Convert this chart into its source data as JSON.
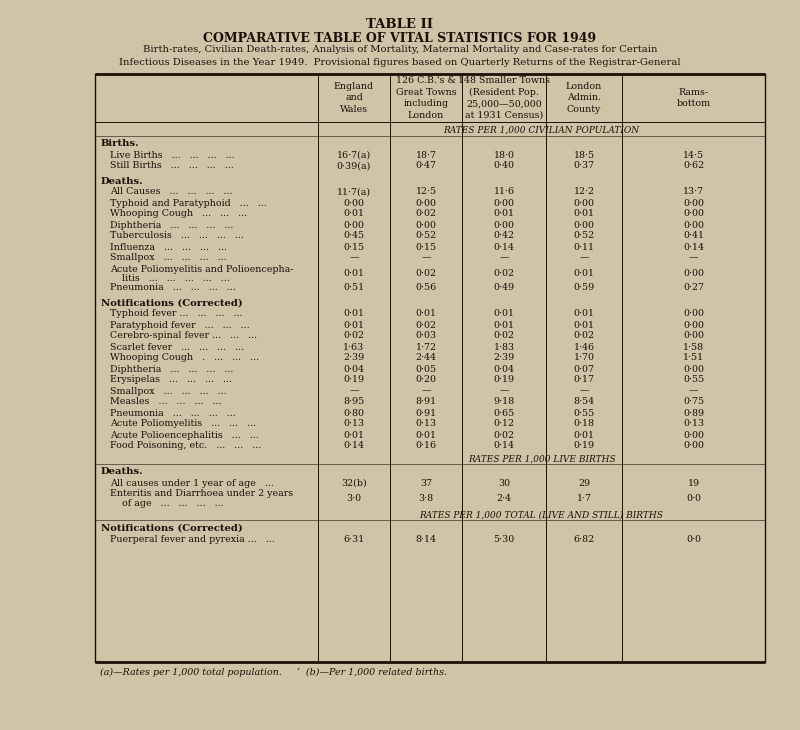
{
  "title1": "TABLE II",
  "title2": "COMPARATIVE TABLE OF VITAL STATISTICS FOR 1949",
  "subtitle": "Birth-rates, Civilian Death-rates, Analysis of Mortality, Maternal Mortality and Case-rates for Certain\nInfectious Diseases in the Year 1949.  Provisional figures based on Quarterly Returns of the Registrar-General",
  "col_headers": [
    "England\nand\nWales",
    "126 C.B.'s &\nGreat Towns\nincluding\nLondon",
    "148 Smaller Towns\n(Resident Pop.\n25,000—50,000\nat 1931 Census)",
    "London\nAdmin.\nCounty",
    "Rams-\nbottom"
  ],
  "rows": [
    {
      "label": "Births.",
      "bold": true,
      "indent": 0,
      "values": [
        "",
        "",
        "",
        "",
        ""
      ],
      "type": "section_bold"
    },
    {
      "label": "Live Births   ...   ...   ...   ...",
      "bold": false,
      "indent": 1,
      "values": [
        "16·7(a)",
        "18·7",
        "18·0",
        "18·5",
        "14·5"
      ],
      "type": "data"
    },
    {
      "label": "Still Births   ...   ...   ...   ...",
      "bold": false,
      "indent": 1,
      "values": [
        "0·39(a)",
        "0·47",
        "0·40",
        "0·37",
        "0·62"
      ],
      "type": "data"
    },
    {
      "label": "",
      "bold": false,
      "indent": 0,
      "values": [
        "",
        "",
        "",
        "",
        ""
      ],
      "type": "spacer"
    },
    {
      "label": "Deaths.",
      "bold": true,
      "indent": 0,
      "values": [
        "",
        "",
        "",
        "",
        ""
      ],
      "type": "section_bold"
    },
    {
      "label": "All Causes   ...   ...   ...   ...",
      "bold": false,
      "indent": 1,
      "values": [
        "11·7(a)",
        "12·5",
        "11·6",
        "12·2",
        "13·7"
      ],
      "type": "data"
    },
    {
      "label": "Typhoid and Paratyphoid   ...   ...",
      "bold": false,
      "indent": 1,
      "values": [
        "0·00",
        "0·00",
        "0·00",
        "0·00",
        "0·00"
      ],
      "type": "data"
    },
    {
      "label": "Whooping Cough   ...   ...   ...",
      "bold": false,
      "indent": 1,
      "values": [
        "0·01",
        "0·02",
        "0·01",
        "0·01",
        "0·00"
      ],
      "type": "data"
    },
    {
      "label": "Diphtheria   ...   ...   ...   ...",
      "bold": false,
      "indent": 1,
      "values": [
        "0·00",
        "0·00",
        "0·00",
        "0·00",
        "0·00"
      ],
      "type": "data"
    },
    {
      "label": "Tuberculosis   ...   ...   ...   ...",
      "bold": false,
      "indent": 1,
      "values": [
        "0·45",
        "0·52",
        "0·42",
        "0·52",
        "0·41"
      ],
      "type": "data"
    },
    {
      "label": "Influenza   ...   ...   ...   ...",
      "bold": false,
      "indent": 1,
      "values": [
        "0·15",
        "0·15",
        "0·14",
        "0·11",
        "0·14"
      ],
      "type": "data"
    },
    {
      "label": "Smallpox   ...   ...   ...   ...",
      "bold": false,
      "indent": 1,
      "values": [
        "—",
        "—",
        "—",
        "—",
        "—"
      ],
      "type": "data"
    },
    {
      "label": "Acute Poliomyelitis and Polioencepha-",
      "label2": "    litis   ...   ...   ...   ...   ...",
      "bold": false,
      "indent": 1,
      "values": [
        "0·01",
        "0·02",
        "0·02",
        "0·01",
        "0·00"
      ],
      "type": "data2"
    },
    {
      "label": "Pneumonia   ...   ...   ...   ...",
      "bold": false,
      "indent": 1,
      "values": [
        "0·51",
        "0·56",
        "0·49",
        "0·59",
        "0·27"
      ],
      "type": "data"
    },
    {
      "label": "",
      "bold": false,
      "indent": 0,
      "values": [
        "",
        "",
        "",
        "",
        ""
      ],
      "type": "spacer"
    },
    {
      "label": "Notifications (Corrected)",
      "bold": true,
      "indent": 0,
      "values": [
        "",
        "",
        "",
        "",
        ""
      ],
      "type": "section_bold"
    },
    {
      "label": "Typhoid fever ...   ...   ...   ...",
      "bold": false,
      "indent": 1,
      "values": [
        "0·01",
        "0·01",
        "0·01",
        "0·01",
        "0·00"
      ],
      "type": "data"
    },
    {
      "label": "Paratyphoid fever   ...   ...   ...",
      "bold": false,
      "indent": 1,
      "values": [
        "0·01",
        "0·02",
        "0·01",
        "0·01",
        "0·00"
      ],
      "type": "data"
    },
    {
      "label": "Cerebro-spinal fever ...   ...   ...",
      "bold": false,
      "indent": 1,
      "values": [
        "0·02",
        "0·03",
        "0·02",
        "0·02",
        "0·00"
      ],
      "type": "data"
    },
    {
      "label": "Scarlet fever   ...   ...   ...   ...",
      "bold": false,
      "indent": 1,
      "values": [
        "1·63",
        "1·72",
        "1·83",
        "1·46",
        "1·58"
      ],
      "type": "data"
    },
    {
      "label": "Whooping Cough   .   ...   ...   ...",
      "bold": false,
      "indent": 1,
      "values": [
        "2·39",
        "2·44",
        "2·39",
        "1·70",
        "1·51"
      ],
      "type": "data"
    },
    {
      "label": "Diphtheria   ...   ...   ...   ...",
      "bold": false,
      "indent": 1,
      "values": [
        "0·04",
        "0·05",
        "0·04",
        "0·07",
        "0·00"
      ],
      "type": "data"
    },
    {
      "label": "Erysipelas   ...   ...   ...   ...",
      "bold": false,
      "indent": 1,
      "values": [
        "0·19",
        "0·20",
        "0·19",
        "0·17",
        "0·55"
      ],
      "type": "data"
    },
    {
      "label": "Smallpox   ...   ...   ...   ...",
      "bold": false,
      "indent": 1,
      "values": [
        "—",
        "—",
        "—",
        "—",
        "—"
      ],
      "type": "data"
    },
    {
      "label": "Measles   ...   ...   ...   ...",
      "bold": false,
      "indent": 1,
      "values": [
        "8·95",
        "8·91",
        "9·18",
        "8·54",
        "0·75"
      ],
      "type": "data"
    },
    {
      "label": "Pneumonia   ...   ...   ...   ...",
      "bold": false,
      "indent": 1,
      "values": [
        "0·80",
        "0·91",
        "0·65",
        "0·55",
        "0·89"
      ],
      "type": "data"
    },
    {
      "label": "Acute Poliomyelitis   ...   ...   ...",
      "bold": false,
      "indent": 1,
      "values": [
        "0·13",
        "0·13",
        "0·12",
        "0·18",
        "0·13"
      ],
      "type": "data"
    },
    {
      "label": "Acute Polioencephalitis   ...   ...",
      "bold": false,
      "indent": 1,
      "values": [
        "0·01",
        "0·01",
        "0·02",
        "0·01",
        "0·00"
      ],
      "type": "data"
    },
    {
      "label": "Food Poisoning, etc.   ...   ...   ...",
      "bold": false,
      "indent": 1,
      "values": [
        "0·14",
        "0·16",
        "0·14",
        "0·19",
        "0·00"
      ],
      "type": "data"
    },
    {
      "label": "RATES PER 1,000 LIVE BIRTHS",
      "bold": false,
      "indent": 0,
      "values": [
        "",
        "",
        "",
        "",
        ""
      ],
      "type": "section_italic"
    },
    {
      "label": "Deaths.",
      "bold": true,
      "indent": 0,
      "values": [
        "",
        "",
        "",
        "",
        ""
      ],
      "type": "section_bold"
    },
    {
      "label": "All causes under 1 year of age   ...",
      "bold": false,
      "indent": 1,
      "values": [
        "32(b)",
        "37",
        "30",
        "29",
        "19"
      ],
      "type": "data"
    },
    {
      "label": "Enteritis and Diarrhoea under 2 years",
      "label2": "    of age   ...   ...   ...   ...",
      "bold": false,
      "indent": 1,
      "values": [
        "3·0",
        "3·8",
        "2·4",
        "1·7",
        "0·0"
      ],
      "type": "data2"
    },
    {
      "label": "RATES PER 1,000 TOTAL (LIVE AND STILL) BIRTHS",
      "bold": false,
      "indent": 0,
      "values": [
        "",
        "",
        "",
        "",
        ""
      ],
      "type": "section_italic"
    },
    {
      "label": "Notifications (Corrected)",
      "bold": true,
      "indent": 0,
      "values": [
        "",
        "",
        "",
        "",
        ""
      ],
      "type": "section_bold"
    },
    {
      "label": "Puerperal fever and pyrexia ...   ...",
      "bold": false,
      "indent": 1,
      "values": [
        "6·31",
        "8·14",
        "5·30",
        "6·82",
        "0·0"
      ],
      "type": "data"
    }
  ],
  "footnote": "(a)—Rates per 1,000 total population.     ’  (b)—Per 1,000 related births.",
  "bg_color": "#cfc4a8",
  "text_color": "#1a1008"
}
